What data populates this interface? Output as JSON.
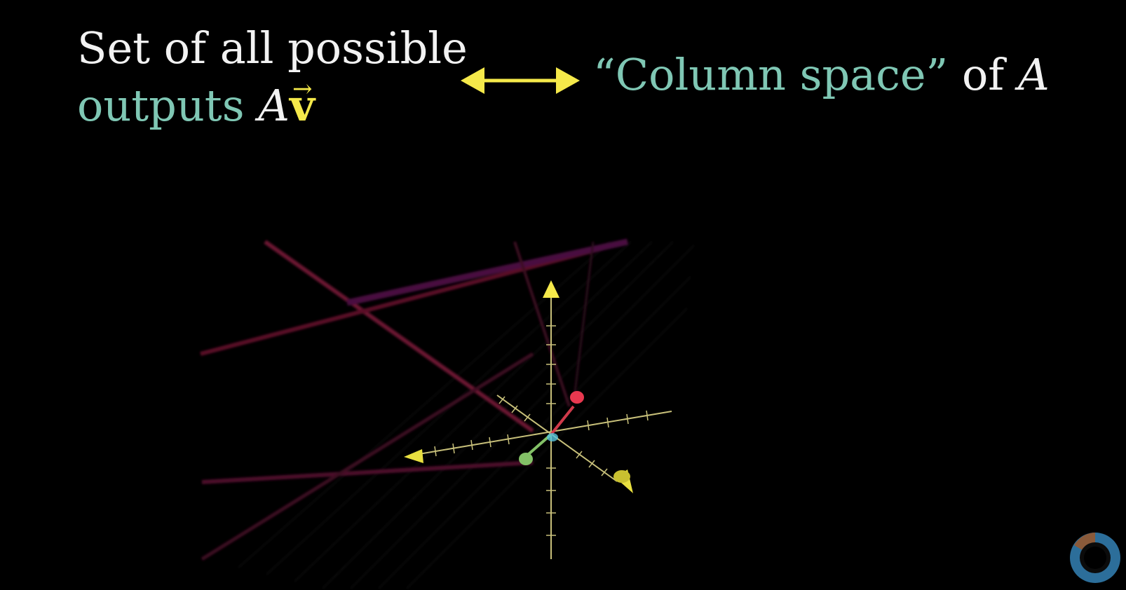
{
  "caption_left": {
    "line1": "Set of all possible",
    "line2_prefix": "outputs",
    "line2_matrix": "A",
    "line2_vector": "v",
    "line2_vector_arrow": "⃗"
  },
  "caption_right": {
    "quoted_term": "“Column space”",
    "connector": "of",
    "matrix": "A"
  },
  "colors": {
    "background": "#000000",
    "text": "#f2f2f2",
    "teal": "#7fc7b4",
    "yellow": "#f5e94a",
    "red": "#e8384f",
    "green": "#83c167",
    "axis": "#c8c07a"
  },
  "icons": [
    "double-arrow-icon",
    "logo-icon"
  ]
}
